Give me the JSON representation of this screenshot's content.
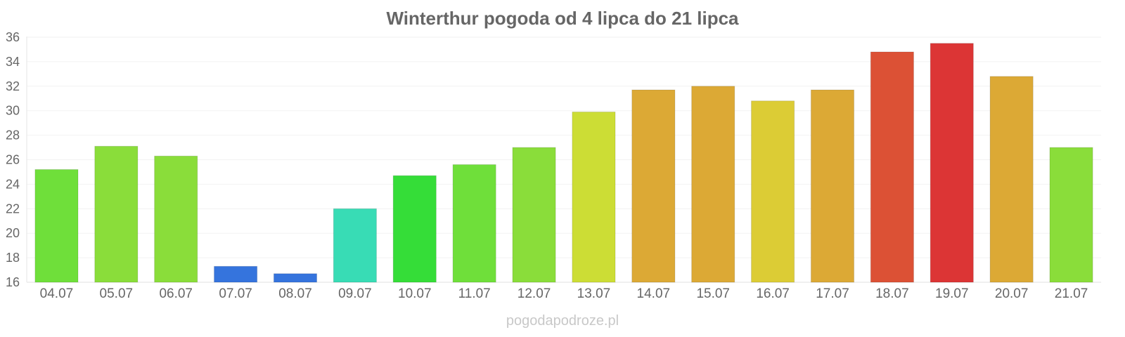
{
  "chart_data": {
    "type": "bar",
    "title": "Winterthur pogoda od 4 lipca do 21 lipca",
    "xlabel": "",
    "ylabel": "",
    "ylim": [
      16,
      36
    ],
    "yticks": [
      16,
      18,
      20,
      22,
      24,
      26,
      28,
      30,
      32,
      34,
      36
    ],
    "grid": true,
    "legend": "none",
    "categories": [
      "04.07",
      "05.07",
      "06.07",
      "07.07",
      "08.07",
      "09.07",
      "10.07",
      "11.07",
      "12.07",
      "13.07",
      "14.07",
      "15.07",
      "16.07",
      "17.07",
      "18.07",
      "19.07",
      "20.07",
      "21.07"
    ],
    "values": [
      25.2,
      27.1,
      26.3,
      17.3,
      16.7,
      22.0,
      24.7,
      25.6,
      27.0,
      29.9,
      31.7,
      32.0,
      30.8,
      31.7,
      34.8,
      35.5,
      32.8,
      27.0
    ],
    "colors": [
      "#6fdf3a",
      "#8add3a",
      "#8add3a",
      "#3574dd",
      "#3574dd",
      "#38dcb5",
      "#35dd38",
      "#6fdf3a",
      "#8add3a",
      "#ccdd35",
      "#dca935",
      "#dca935",
      "#dccc35",
      "#dca935",
      "#dc5135",
      "#dc3535",
      "#dca935",
      "#8add3a"
    ]
  },
  "watermark": "pogodapodroze.pl"
}
